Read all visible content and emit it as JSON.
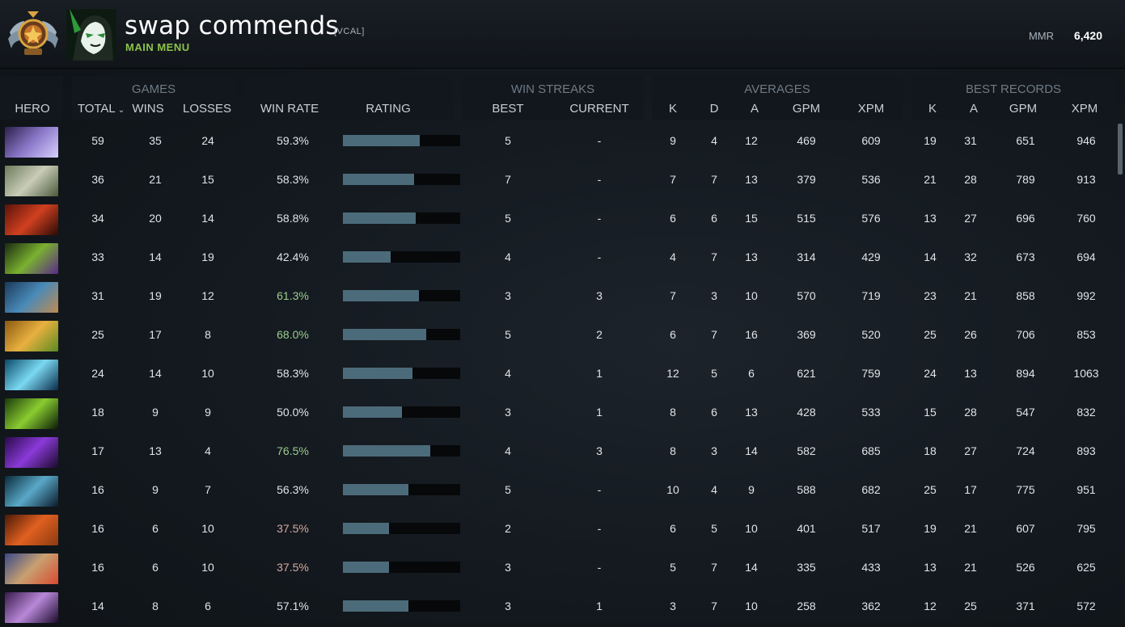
{
  "profile": {
    "name": "swap commends",
    "clan_tag": "[VCAL]",
    "menu_link": "MAIN MENU",
    "mmr_label": "MMR",
    "mmr_value": "6,420",
    "rank_medal": "rank-medal-icon",
    "avatar": "avatar"
  },
  "table": {
    "groups": {
      "games": "GAMES",
      "win_streaks": "WIN STREAKS",
      "averages": "AVERAGES",
      "best_records": "BEST RECORDS"
    },
    "columns": {
      "hero": "HERO",
      "total": "TOTAL",
      "wins": "WINS",
      "losses": "LOSSES",
      "win_rate": "WIN RATE",
      "rating": "RATING",
      "best": "BEST",
      "current": "CURRENT",
      "k": "K",
      "d": "D",
      "a": "A",
      "gpm": "GPM",
      "xpm": "XPM",
      "best_k": "K",
      "best_a": "A",
      "best_gpm": "GPM",
      "best_xpm": "XPM"
    },
    "sort_indicator": "chevron-down-icon",
    "rows": [
      {
        "total": "59",
        "wins": "35",
        "losses": "24",
        "win_rate": "59.3%",
        "rating": 0.655,
        "best": "5",
        "current": "-",
        "k": "9",
        "d": "4",
        "a": "12",
        "gpm": "469",
        "xpm": "609",
        "bk": "19",
        "ba": "31",
        "bgpm": "651",
        "bxpm": "946"
      },
      {
        "total": "36",
        "wins": "21",
        "losses": "15",
        "win_rate": "58.3%",
        "rating": 0.61,
        "best": "7",
        "current": "-",
        "k": "7",
        "d": "7",
        "a": "13",
        "gpm": "379",
        "xpm": "536",
        "bk": "21",
        "ba": "28",
        "bgpm": "789",
        "bxpm": "913"
      },
      {
        "total": "34",
        "wins": "20",
        "losses": "14",
        "win_rate": "58.8%",
        "rating": 0.62,
        "best": "5",
        "current": "-",
        "k": "6",
        "d": "6",
        "a": "15",
        "gpm": "515",
        "xpm": "576",
        "bk": "13",
        "ba": "27",
        "bgpm": "696",
        "bxpm": "760"
      },
      {
        "total": "33",
        "wins": "14",
        "losses": "19",
        "win_rate": "42.4%",
        "rating": 0.405,
        "best": "4",
        "current": "-",
        "k": "4",
        "d": "7",
        "a": "13",
        "gpm": "314",
        "xpm": "429",
        "bk": "14",
        "ba": "32",
        "bgpm": "673",
        "bxpm": "694"
      },
      {
        "total": "31",
        "wins": "19",
        "losses": "12",
        "win_rate": "61.3%",
        "rating": 0.645,
        "best": "3",
        "current": "3",
        "k": "7",
        "d": "3",
        "a": "10",
        "gpm": "570",
        "xpm": "719",
        "bk": "23",
        "ba": "21",
        "bgpm": "858",
        "bxpm": "992"
      },
      {
        "total": "25",
        "wins": "17",
        "losses": "8",
        "win_rate": "68.0%",
        "rating": 0.71,
        "best": "5",
        "current": "2",
        "k": "6",
        "d": "7",
        "a": "16",
        "gpm": "369",
        "xpm": "520",
        "bk": "25",
        "ba": "26",
        "bgpm": "706",
        "bxpm": "853"
      },
      {
        "total": "24",
        "wins": "14",
        "losses": "10",
        "win_rate": "58.3%",
        "rating": 0.59,
        "best": "4",
        "current": "1",
        "k": "12",
        "d": "5",
        "a": "6",
        "gpm": "621",
        "xpm": "759",
        "bk": "24",
        "ba": "13",
        "bgpm": "894",
        "bxpm": "1063"
      },
      {
        "total": "18",
        "wins": "9",
        "losses": "9",
        "win_rate": "50.0%",
        "rating": 0.505,
        "best": "3",
        "current": "1",
        "k": "8",
        "d": "6",
        "a": "13",
        "gpm": "428",
        "xpm": "533",
        "bk": "15",
        "ba": "28",
        "bgpm": "547",
        "bxpm": "832"
      },
      {
        "total": "17",
        "wins": "13",
        "losses": "4",
        "win_rate": "76.5%",
        "rating": 0.745,
        "best": "4",
        "current": "3",
        "k": "8",
        "d": "3",
        "a": "14",
        "gpm": "582",
        "xpm": "685",
        "bk": "18",
        "ba": "27",
        "bgpm": "724",
        "bxpm": "893"
      },
      {
        "total": "16",
        "wins": "9",
        "losses": "7",
        "win_rate": "56.3%",
        "rating": 0.56,
        "best": "5",
        "current": "-",
        "k": "10",
        "d": "4",
        "a": "9",
        "gpm": "588",
        "xpm": "682",
        "bk": "25",
        "ba": "17",
        "bgpm": "775",
        "bxpm": "951"
      },
      {
        "total": "16",
        "wins": "6",
        "losses": "10",
        "win_rate": "37.5%",
        "rating": 0.395,
        "best": "2",
        "current": "-",
        "k": "6",
        "d": "5",
        "a": "10",
        "gpm": "401",
        "xpm": "517",
        "bk": "19",
        "ba": "21",
        "bgpm": "607",
        "bxpm": "795"
      },
      {
        "total": "16",
        "wins": "6",
        "losses": "10",
        "win_rate": "37.5%",
        "rating": 0.395,
        "best": "3",
        "current": "-",
        "k": "5",
        "d": "7",
        "a": "14",
        "gpm": "335",
        "xpm": "433",
        "bk": "13",
        "ba": "21",
        "bgpm": "526",
        "bxpm": "625"
      },
      {
        "total": "14",
        "wins": "8",
        "losses": "6",
        "win_rate": "57.1%",
        "rating": 0.56,
        "best": "3",
        "current": "1",
        "k": "3",
        "d": "7",
        "a": "10",
        "gpm": "258",
        "xpm": "362",
        "bk": "12",
        "ba": "25",
        "bgpm": "371",
        "bxpm": "572"
      }
    ]
  },
  "colors": {
    "win_rate_high": "#9ccc8c",
    "win_rate_normal": "#dfe4e8",
    "win_rate_low": "#d6aaa0",
    "rating_bar": "#4c6b7a",
    "rating_track": "#06080a",
    "accent_green": "#8bc34a"
  }
}
